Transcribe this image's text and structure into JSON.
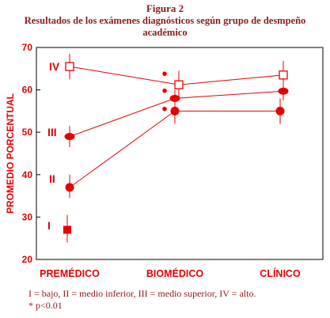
{
  "figure_label": "Figura 2",
  "title": "Resultados de los exámenes diagnósticos según grupo de desmpeño académico",
  "footnotes": [
    "I = bajo, II = medio inferior, III = medio superior, IV = alto.",
    "* p<0.01"
  ],
  "colors": {
    "primary": "#e60000",
    "title": "#8b1a1a"
  },
  "chart_data": {
    "type": "line",
    "title": "Resultados de los exámenes diagnósticos según grupo de desmpeño académico",
    "xlabel": "",
    "ylabel": "PROMEDIO PORCENTUAL",
    "ylim": [
      20,
      70
    ],
    "yticks": [
      20,
      30,
      40,
      50,
      60,
      70
    ],
    "grid": false,
    "legend": "none",
    "categories": [
      "PREMÉDICO",
      "BIOMÉDICO",
      "CLÍNICO"
    ],
    "series": [
      {
        "name": "IV",
        "marker": "open-square",
        "values": [
          65.5,
          61.2,
          63.5
        ]
      },
      {
        "name": "III",
        "marker": "ellipse",
        "values": [
          49,
          58,
          59.7
        ]
      },
      {
        "name": "II",
        "marker": "circle",
        "values": [
          37,
          55,
          55
        ]
      },
      {
        "name": "I",
        "marker": "filled-square",
        "values": [
          27,
          null,
          null
        ]
      }
    ],
    "error_ranges": [
      {
        "series": "IV",
        "category": "PREMÉDICO",
        "low": 62.5,
        "high": 68.5
      },
      {
        "series": "IV",
        "category": "BIOMÉDICO",
        "low": 58,
        "high": 64.5
      },
      {
        "series": "IV",
        "category": "CLÍNICO",
        "low": 60.5,
        "high": 66.8
      },
      {
        "series": "III",
        "category": "PREMÉDICO",
        "low": 46.5,
        "high": 51.5
      },
      {
        "series": "III",
        "category": "BIOMÉDICO",
        "low": 56,
        "high": 60
      },
      {
        "series": "III",
        "category": "CLÍNICO",
        "low": 57.5,
        "high": 62
      },
      {
        "series": "II",
        "category": "PREMÉDICO",
        "low": 34.5,
        "high": 40
      },
      {
        "series": "II",
        "category": "BIOMÉDICO",
        "low": 52,
        "high": 58
      },
      {
        "series": "II",
        "category": "CLÍNICO",
        "low": 52,
        "high": 58
      },
      {
        "series": "I",
        "category": "PREMÉDICO",
        "low": 24,
        "high": 30.5
      }
    ],
    "significance_markers": [
      {
        "category": "BIOMÉDICO",
        "value": 63.8
      },
      {
        "category": "BIOMÉDICO",
        "value": 59.8
      },
      {
        "category": "BIOMÉDICO",
        "value": 55.5
      }
    ]
  }
}
